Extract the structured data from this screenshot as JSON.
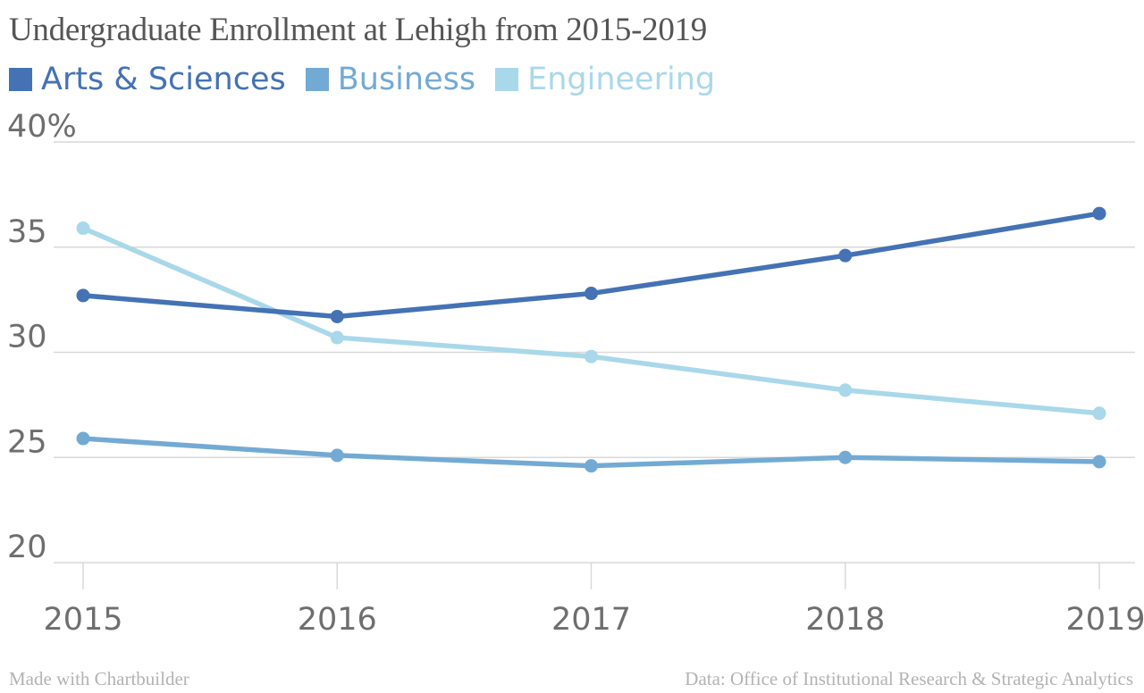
{
  "chart_data": {
    "type": "line",
    "title": "Undergraduate Enrollment at Lehigh from 2015-2019",
    "x": [
      "2015",
      "2016",
      "2017",
      "2018",
      "2019"
    ],
    "ylim": [
      20,
      40
    ],
    "y_ticks": [
      {
        "value": 40,
        "label": "40%"
      },
      {
        "value": 35,
        "label": "35"
      },
      {
        "value": 30,
        "label": "30"
      },
      {
        "value": 25,
        "label": "25"
      },
      {
        "value": 20,
        "label": "20"
      }
    ],
    "grid": true,
    "legend_position": "top-left",
    "series": [
      {
        "name": "Arts & Sciences",
        "color": "#4472b4",
        "values": [
          32.7,
          31.7,
          32.8,
          34.6,
          36.6
        ]
      },
      {
        "name": "Business",
        "color": "#73aad4",
        "values": [
          25.9,
          25.1,
          24.6,
          25.0,
          24.8
        ]
      },
      {
        "name": "Engineering",
        "color": "#a9d8ea",
        "values": [
          35.9,
          30.7,
          29.8,
          28.2,
          27.1
        ]
      }
    ]
  },
  "footer": {
    "left": "Made with Chartbuilder",
    "right": "Data: Office of Institutional Research & Strategic Analytics"
  }
}
